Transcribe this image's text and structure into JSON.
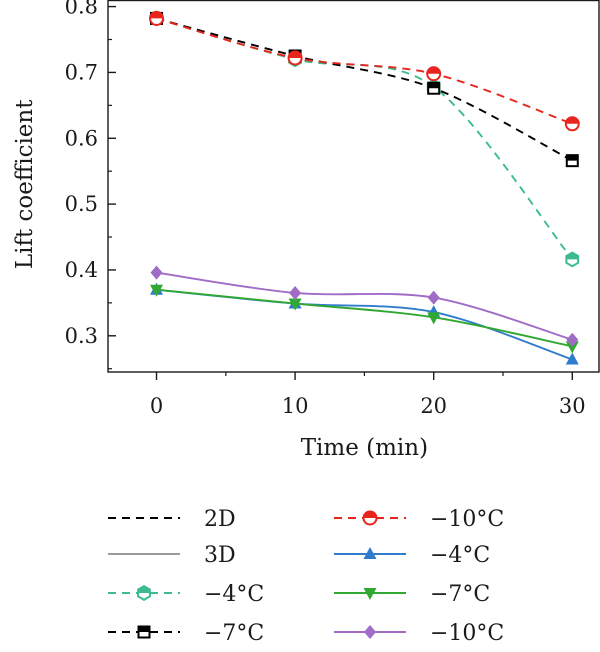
{
  "chart_data": {
    "type": "line",
    "title": "",
    "xlabel": "Time (min)",
    "ylabel": "Lift coefficient",
    "x": [
      0,
      10,
      20,
      30
    ],
    "xlim": [
      -3.5,
      32
    ],
    "ylim": [
      0.245,
      0.81
    ],
    "xticks": [
      "0",
      "10",
      "20",
      "30"
    ],
    "yticks": [
      "0.3",
      "0.4",
      "0.5",
      "0.6",
      "0.7",
      "0.8"
    ],
    "grid": false,
    "legend_position": "bottom",
    "legend_style": [
      {
        "label": "2D",
        "line": "dashed",
        "color": "#000000",
        "marker": "none"
      },
      {
        "label": "3D",
        "line": "solid",
        "color": "#9a9a9a",
        "marker": "none"
      }
    ],
    "series": [
      {
        "name": "−4°C",
        "dim": "2D",
        "color": "#3dbb8f",
        "line": "dashed",
        "marker": "hexagon-half",
        "values": [
          0.782,
          0.72,
          0.678,
          0.416
        ]
      },
      {
        "name": "−7°C",
        "dim": "2D",
        "color": "#000000",
        "line": "dashed",
        "marker": "square-half",
        "values": [
          0.782,
          0.725,
          0.676,
          0.566
        ]
      },
      {
        "name": "−10°C",
        "dim": "2D",
        "color": "#e8241c",
        "line": "dashed",
        "marker": "circle-half",
        "values": [
          0.782,
          0.722,
          0.698,
          0.622
        ]
      },
      {
        "name": "−4°C",
        "dim": "3D",
        "color": "#2f7ccd",
        "line": "solid",
        "marker": "triangle-up",
        "values": [
          0.37,
          0.349,
          0.336,
          0.264
        ]
      },
      {
        "name": "−7°C",
        "dim": "3D",
        "color": "#31a832",
        "line": "solid",
        "marker": "triangle-down",
        "values": [
          0.37,
          0.349,
          0.328,
          0.284
        ]
      },
      {
        "name": "−10°C",
        "dim": "3D",
        "color": "#a06cc6",
        "line": "solid",
        "marker": "diamond",
        "values": [
          0.396,
          0.365,
          0.358,
          0.294
        ]
      }
    ]
  }
}
